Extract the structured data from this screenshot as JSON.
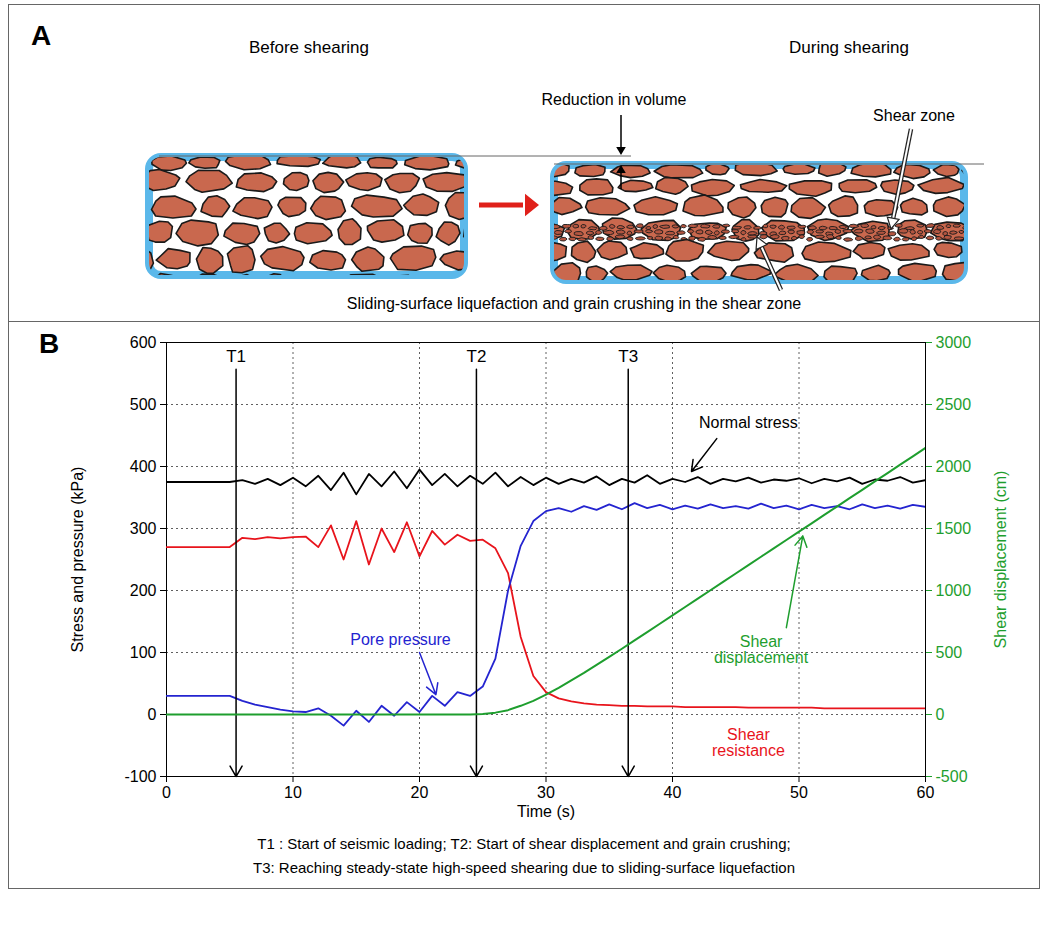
{
  "diagram": {
    "letter": "A",
    "left_title": "Before shearing",
    "right_title": "During shearing",
    "volume_label": "Reduction in volume",
    "shear_zone_label": "Shear zone",
    "bottom_label": "Sliding-surface liquefaction and grain crushing in the shear zone"
  },
  "chart_letter": "B",
  "chart_data": {
    "type": "line",
    "x_label": "Time (s)",
    "y_label": "Stress and pressure (kPa)",
    "y2_label": "Shear displacement (cm)",
    "xlim": [
      0,
      60
    ],
    "xticks": [
      0,
      10,
      20,
      30,
      40,
      50,
      60
    ],
    "ylim": [
      -100,
      600
    ],
    "yticks": [
      -100,
      0,
      100,
      200,
      300,
      400,
      500,
      600
    ],
    "y2lim": [
      -500,
      3000
    ],
    "y2ticks": [
      -500,
      0,
      500,
      1000,
      1500,
      2000,
      2500,
      3000
    ],
    "grid": true,
    "legend": false,
    "x": [
      0,
      1,
      2,
      3,
      4,
      5,
      6,
      7,
      8,
      9,
      10,
      11,
      12,
      13,
      14,
      15,
      16,
      17,
      18,
      19,
      20,
      21,
      22,
      23,
      24,
      25,
      26,
      27,
      28,
      29,
      30,
      31,
      32,
      33,
      34,
      35,
      36,
      37,
      38,
      39,
      40,
      41,
      42,
      43,
      44,
      45,
      46,
      47,
      48,
      49,
      50,
      51,
      52,
      53,
      54,
      55,
      56,
      57,
      58,
      59,
      60
    ],
    "series": [
      {
        "name": "Normal stress",
        "color": "#000000",
        "values": [
          375,
          375,
          375,
          375,
          375,
          375,
          378,
          372,
          380,
          370,
          382,
          368,
          385,
          362,
          390,
          355,
          388,
          368,
          392,
          365,
          395,
          370,
          388,
          368,
          385,
          372,
          390,
          368,
          383,
          370,
          382,
          372,
          380,
          374,
          384,
          370,
          380,
          374,
          386,
          372,
          380,
          375,
          383,
          372,
          380,
          376,
          382,
          374,
          379,
          377,
          381,
          373,
          380,
          376,
          382,
          372,
          379,
          377,
          383,
          374,
          378
        ]
      },
      {
        "name": "Shear resistance",
        "color": "#e8141c",
        "values": [
          270,
          270,
          270,
          270,
          270,
          270,
          285,
          283,
          286,
          284,
          286,
          287,
          270,
          305,
          250,
          312,
          242,
          300,
          262,
          310,
          255,
          296,
          274,
          290,
          280,
          282,
          268,
          228,
          125,
          62,
          36,
          26,
          21,
          18,
          16,
          15,
          14,
          14,
          13,
          13,
          13,
          12,
          12,
          12,
          12,
          12,
          11,
          11,
          11,
          11,
          11,
          11,
          10,
          10,
          10,
          10,
          10,
          10,
          10,
          10,
          10
        ]
      },
      {
        "name": "Pore pressure",
        "color": "#2424d0",
        "values": [
          30,
          30,
          30,
          30,
          30,
          30,
          22,
          16,
          12,
          8,
          5,
          4,
          10,
          -2,
          -18,
          6,
          -12,
          14,
          -2,
          20,
          4,
          30,
          14,
          36,
          30,
          45,
          90,
          200,
          272,
          312,
          328,
          333,
          327,
          336,
          330,
          339,
          331,
          341,
          333,
          338,
          331,
          337,
          332,
          339,
          333,
          336,
          332,
          340,
          333,
          337,
          331,
          338,
          333,
          336,
          331,
          339,
          333,
          337,
          332,
          338,
          335
        ]
      },
      {
        "name": "Shear displacement",
        "color": "#1e9e2e",
        "axis": "y2",
        "values": [
          0,
          0,
          0,
          0,
          0,
          0,
          0,
          0,
          0,
          0,
          0,
          0,
          0,
          0,
          0,
          0,
          0,
          0,
          0,
          0,
          0,
          0,
          0,
          0,
          0,
          5,
          15,
          35,
          70,
          110,
          160,
          215,
          275,
          335,
          400,
          465,
          530,
          598,
          665,
          732,
          800,
          867,
          935,
          1002,
          1070,
          1137,
          1205,
          1272,
          1340,
          1407,
          1475,
          1542,
          1610,
          1677,
          1745,
          1812,
          1880,
          1947,
          2015,
          2082,
          2150
        ]
      }
    ],
    "annotations": [
      {
        "text": "T1",
        "x": 5.5,
        "y": 578,
        "arrow": {
          "from": [
            5.5,
            578
          ],
          "to": [
            5.5,
            -100
          ]
        }
      },
      {
        "text": "T2",
        "x": 24.5,
        "y": 578,
        "arrow": {
          "from": [
            24.5,
            578
          ],
          "to": [
            24.5,
            -100
          ]
        }
      },
      {
        "text": "T3",
        "x": 36.5,
        "y": 578,
        "arrow": {
          "from": [
            36.5,
            578
          ],
          "to": [
            36.5,
            -100
          ]
        }
      },
      {
        "series": "Normal stress",
        "x": 46,
        "y": 470,
        "arrow": {
          "from": [
            43.5,
            445
          ],
          "to": [
            41.5,
            392
          ]
        }
      },
      {
        "series": "Pore pressure",
        "x": 18.5,
        "y": 120,
        "arrow": {
          "from": [
            20,
            100
          ],
          "to": [
            21.3,
            32
          ]
        }
      },
      {
        "series": "Shear resistance",
        "x": 46,
        "y": -45
      },
      {
        "series": "Shear displacement",
        "x": 47,
        "y": 520,
        "arrow": {
          "from": [
            49,
            700
          ],
          "to": [
            50.3,
            1440
          ]
        }
      }
    ],
    "caption": [
      "T1 : Start of seismic loading; T2: Start of shear displacement and grain crushing;",
      "T3: Reaching steady-state high-speed shearing due to sliding-surface liquefaction"
    ]
  }
}
